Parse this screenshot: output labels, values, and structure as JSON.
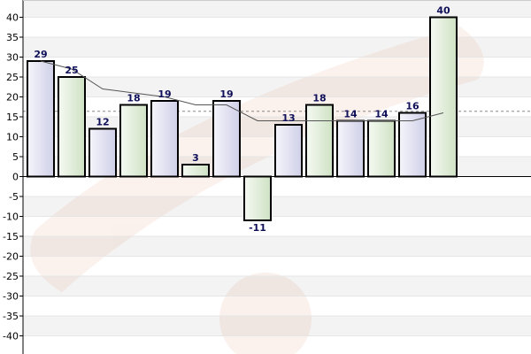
{
  "chart_data": {
    "type": "bar",
    "title": "",
    "xlabel": "",
    "ylabel": "",
    "ylim": [
      -45,
      45
    ],
    "yticks": [
      40,
      35,
      30,
      25,
      20,
      15,
      10,
      5,
      0,
      -5,
      -10,
      -15,
      -20,
      -25,
      -30,
      -35,
      -40
    ],
    "grid": true,
    "legend": "none",
    "values": [
      29,
      25,
      12,
      18,
      19,
      3,
      19,
      -11,
      13,
      18,
      14,
      14,
      16,
      40
    ],
    "labels": [
      "29",
      "25",
      "12",
      "18",
      "19",
      "3",
      "19",
      "-11",
      "13",
      "18",
      "14",
      "14",
      "16",
      "40"
    ],
    "trend": [
      29,
      27,
      22,
      21,
      20,
      18,
      18,
      14,
      14,
      14,
      14,
      14,
      14,
      16
    ],
    "average_line": 16.4,
    "colors": {
      "bar_fill_odd": "#dcdcf0",
      "bar_fill_even": "#dcebd4",
      "bar_stroke": "#000000",
      "label": "#10105a",
      "band": "#f3f3f3",
      "trend": "#555555",
      "average": "#888888"
    }
  }
}
